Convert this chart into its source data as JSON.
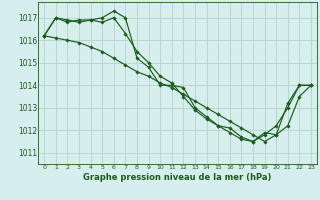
{
  "background_color": "#d7eeee",
  "grid_color": "#b8d8cc",
  "line_color": "#1a5c1a",
  "title": "Graphe pression niveau de la mer (hPa)",
  "ylim": [
    1010.5,
    1017.7
  ],
  "xlim": [
    -0.5,
    23.5
  ],
  "yticks": [
    1011,
    1012,
    1013,
    1014,
    1015,
    1016,
    1017
  ],
  "xticks": [
    0,
    1,
    2,
    3,
    4,
    5,
    6,
    7,
    8,
    9,
    10,
    11,
    12,
    13,
    14,
    15,
    16,
    17,
    18,
    19,
    20,
    21,
    22,
    23
  ],
  "series": [
    [
      1016.2,
      1017.0,
      1016.8,
      1016.9,
      1016.9,
      1017.0,
      1017.3,
      1017.0,
      1015.2,
      1014.8,
      1014.0,
      1014.0,
      1013.9,
      1013.0,
      1012.6,
      1012.2,
      1012.1,
      1011.7,
      1011.5,
      1011.8,
      1012.2,
      1013.0,
      1014.0,
      1014.0
    ],
    [
      1016.2,
      1017.0,
      1016.9,
      1016.8,
      1016.9,
      1016.8,
      1017.0,
      1016.3,
      1015.5,
      1015.0,
      1014.4,
      1014.1,
      1013.5,
      1012.9,
      1012.5,
      1012.2,
      1011.9,
      1011.6,
      1011.5,
      1011.9,
      1011.8,
      1013.2,
      1014.0,
      1014.0
    ],
    [
      1016.2,
      1016.1,
      1016.0,
      1015.9,
      1015.7,
      1015.5,
      1015.2,
      1014.9,
      1014.6,
      1014.4,
      1014.1,
      1013.9,
      1013.6,
      1013.3,
      1013.0,
      1012.7,
      1012.4,
      1012.1,
      1011.8,
      1011.5,
      1011.8,
      1012.2,
      1013.5,
      1014.0
    ]
  ]
}
